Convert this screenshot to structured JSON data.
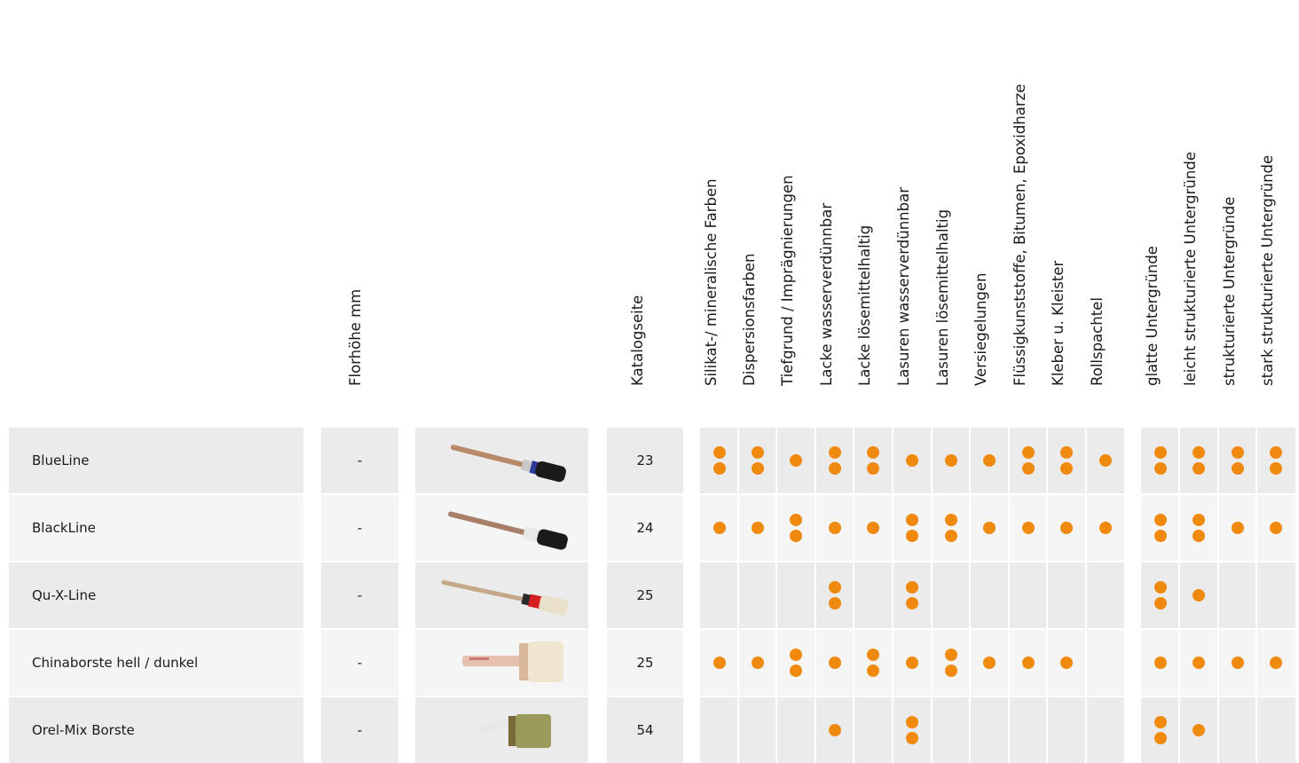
{
  "colors": {
    "row_dark": "#ebebeb",
    "row_light": "#f5f5f5",
    "dot": "#f08a0f"
  },
  "headers": {
    "florhoehe": "Florhöhe mm",
    "katalogseite": "Katalogseite",
    "usage": [
      "Silikat-/ mineralische Farben",
      "Dispersionsfarben",
      "Tiefgrund / Imprägnierungen",
      "Lacke wasserverdünnbar",
      "Lacke lösemittelhaltig",
      "Lasuren wasserverdünnbar",
      "Lasuren lösemittelhaltig",
      "Versiegelungen",
      "Flüssigkunststoffe, Bitumen, Epoxidharze",
      "Kleber u. Kleister",
      "Rollspachtel"
    ],
    "surface": [
      "glatte Untergründe",
      "leicht strukturierte Untergründe",
      "strukturierte Untergründe",
      "stark strukturierte Untergründe"
    ]
  },
  "rows": [
    {
      "name": "BlueLine",
      "florhoehe": "-",
      "image_icon": "round-brush-blue-band-icon",
      "katalogseite": "23",
      "usage": [
        2,
        2,
        1,
        2,
        2,
        1,
        1,
        1,
        2,
        2,
        1
      ],
      "surface": [
        2,
        2,
        2,
        2
      ]
    },
    {
      "name": "BlackLine",
      "florhoehe": "-",
      "image_icon": "round-brush-white-band-icon",
      "katalogseite": "24",
      "usage": [
        1,
        1,
        2,
        1,
        1,
        2,
        2,
        1,
        1,
        1,
        1
      ],
      "surface": [
        2,
        2,
        1,
        1
      ]
    },
    {
      "name": "Qu-X-Line",
      "florhoehe": "-",
      "image_icon": "round-brush-red-band-icon",
      "katalogseite": "25",
      "usage": [
        0,
        0,
        0,
        2,
        0,
        2,
        0,
        0,
        0,
        0,
        0
      ],
      "surface": [
        2,
        1,
        0,
        0
      ]
    },
    {
      "name": "Chinaborste hell / dunkel",
      "florhoehe": "-",
      "image_icon": "ceiling-brush-icon",
      "katalogseite": "25",
      "usage": [
        1,
        1,
        2,
        1,
        2,
        1,
        2,
        1,
        1,
        1,
        0
      ],
      "surface": [
        1,
        1,
        1,
        1
      ]
    },
    {
      "name": "Orel-Mix Borste",
      "florhoehe": "-",
      "image_icon": "block-brush-icon",
      "katalogseite": "54",
      "usage": [
        0,
        0,
        0,
        1,
        0,
        2,
        0,
        0,
        0,
        0,
        0
      ],
      "surface": [
        2,
        1,
        0,
        0
      ]
    }
  ]
}
